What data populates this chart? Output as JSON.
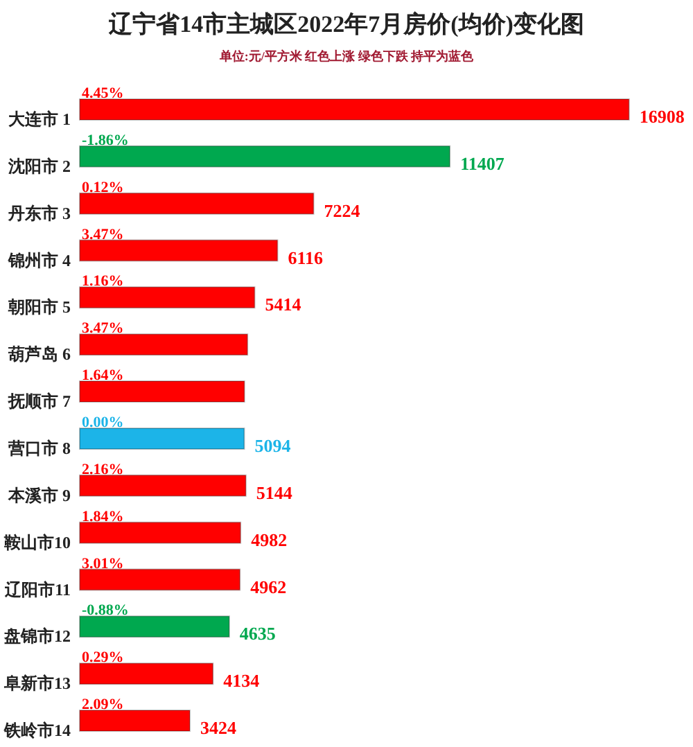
{
  "chart_data": {
    "type": "bar",
    "orientation": "horizontal",
    "title": "辽宁省14市主城区2022年7月房价(均价)变化图",
    "subtitle": "单位:元/平方米 红色上涨 绿色下跌 持平为蓝色",
    "categories": [
      "大连市 1",
      "沈阳市 2",
      "丹东市 3",
      "锦州市 4",
      "朝阳市 5",
      "葫芦岛 6",
      "抚顺市 7",
      "营口市 8",
      "本溪市 9",
      "鞍山市10",
      "辽阳市11",
      "盘锦市12",
      "阜新市13",
      "铁岭市14"
    ],
    "values": [
      16908,
      11407,
      7224,
      6116,
      5414,
      5195,
      5100,
      5094,
      5144,
      4982,
      4962,
      4635,
      4134,
      3424
    ],
    "value_labels": [
      "16908",
      "11407",
      "7224",
      "6116",
      "5414",
      null,
      null,
      "5094",
      "5144",
      "4982",
      "4962",
      "4635",
      "4134",
      "3424"
    ],
    "colors": [
      "#ff0000",
      "#00a84f",
      "#ff0000",
      "#ff0000",
      "#ff0000",
      "#ff0000",
      "#ff0000",
      "#1cb4e8",
      "#ff0000",
      "#ff0000",
      "#ff0000",
      "#00a84f",
      "#ff0000",
      "#ff0000"
    ],
    "annotations": [
      {
        "text": "4.45%",
        "y": "大连市 1"
      },
      {
        "text": "-1.86%",
        "y": "沈阳市 2"
      },
      {
        "text": "0.12%",
        "y": "丹东市 3"
      },
      {
        "text": "3.47%",
        "y": "锦州市 4"
      },
      {
        "text": "1.16%",
        "y": "朝阳市 5"
      },
      {
        "text": "3.47%",
        "y": "葫芦岛 6"
      },
      {
        "text": "1.64%",
        "y": "抚顺市 7"
      },
      {
        "text": "0.00%",
        "y": "营口市 8"
      },
      {
        "text": "2.16%",
        "y": "本溪市 9"
      },
      {
        "text": "1.84%",
        "y": "鞍山市10"
      },
      {
        "text": "3.01%",
        "y": "辽阳市11"
      },
      {
        "text": "-0.88%",
        "y": "盘锦市12"
      },
      {
        "text": "0.29%",
        "y": "阜新市13"
      },
      {
        "text": "2.09%",
        "y": "铁岭市14"
      }
    ]
  }
}
